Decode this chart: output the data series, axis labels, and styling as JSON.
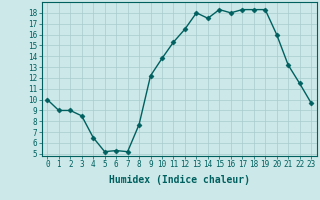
{
  "x": [
    0,
    1,
    2,
    3,
    4,
    5,
    6,
    7,
    8,
    9,
    10,
    11,
    12,
    13,
    14,
    15,
    16,
    17,
    18,
    19,
    20,
    21,
    22,
    23
  ],
  "y": [
    10,
    9,
    9,
    8.5,
    6.5,
    5.2,
    5.3,
    5.2,
    7.7,
    12.2,
    13.8,
    15.3,
    16.5,
    18.0,
    17.5,
    18.3,
    18.0,
    18.3,
    18.3,
    18.3,
    16.0,
    13.2,
    11.5,
    9.7
  ],
  "line_color": "#006060",
  "marker_color": "#006060",
  "bg_color": "#cce8e8",
  "grid_color": "#a8cccc",
  "xlabel": "Humidex (Indice chaleur)",
  "ylim": [
    4.8,
    19.0
  ],
  "xlim": [
    -0.5,
    23.5
  ],
  "yticks": [
    5,
    6,
    7,
    8,
    9,
    10,
    11,
    12,
    13,
    14,
    15,
    16,
    17,
    18
  ],
  "xticks": [
    0,
    1,
    2,
    3,
    4,
    5,
    6,
    7,
    8,
    9,
    10,
    11,
    12,
    13,
    14,
    15,
    16,
    17,
    18,
    19,
    20,
    21,
    22,
    23
  ],
  "xlabel_fontsize": 7,
  "tick_fontsize": 5.5,
  "marker_size": 2.5,
  "line_width": 1.0
}
